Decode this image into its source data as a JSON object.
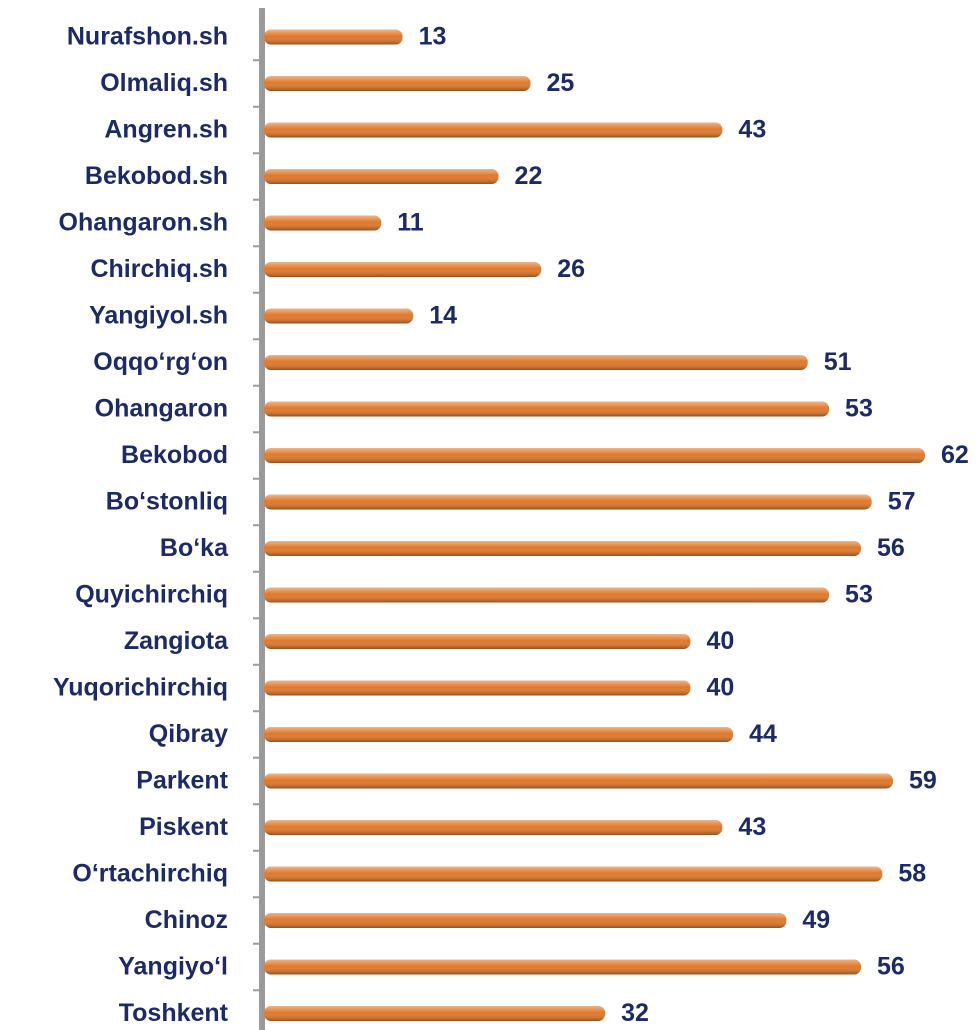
{
  "chart_data": {
    "type": "bar",
    "orientation": "horizontal",
    "categories": [
      "Nurafshon.sh",
      "Olmaliq.sh",
      "Angren.sh",
      "Bekobod.sh",
      "Ohangaron.sh",
      "Chirchiq.sh",
      "Yangiyol.sh",
      "Oqqo‘rg‘on",
      "Ohangaron",
      "Bekobod",
      "Bo‘stonliq",
      "Bo‘ka",
      "Quyichirchiq",
      "Zangiota",
      "Yuqorichirchiq",
      "Qibray",
      "Parkent",
      "Piskent",
      "O‘rtachirchiq",
      "Chinoz",
      "Yangiyo‘l",
      "Toshkent"
    ],
    "values": [
      13,
      25,
      43,
      22,
      11,
      26,
      14,
      51,
      53,
      62,
      57,
      56,
      53,
      40,
      40,
      44,
      59,
      43,
      58,
      49,
      56,
      32
    ],
    "color": "#e0782a"
  }
}
